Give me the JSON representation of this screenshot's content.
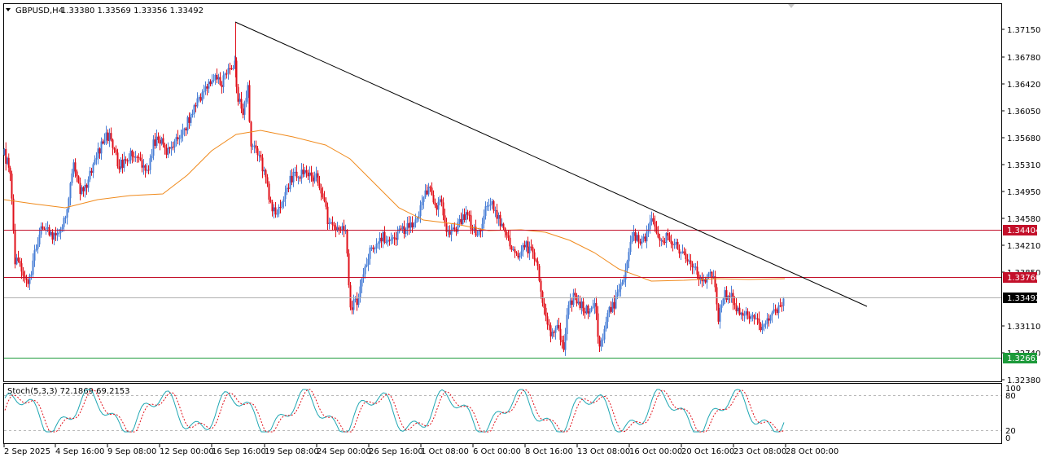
{
  "header": {
    "symbol": "GBPUSD,H4",
    "ohlc": "1.33380 1.33569 1.33356 1.33492"
  },
  "stoch_header": "Stoch(5,3,3) 72.1869 69.2153",
  "colors": {
    "bull": "#4a7fd6",
    "bear": "#e0101a",
    "ma": "#f08a1c",
    "resistance": "#c3102a",
    "support": "#1c9a3a",
    "trendline": "#000000",
    "stoch_main": "#20a7b3",
    "stoch_signal": "#e0101a"
  },
  "price_axis": [
    "1.37150",
    "1.36780",
    "1.36420",
    "1.36050",
    "1.35680",
    "1.35310",
    "1.34950",
    "1.34580",
    "1.34210",
    "1.33850",
    "1.33110",
    "1.32740",
    "1.32380"
  ],
  "price_markers": [
    {
      "value": "1.34404",
      "kind": "resistance"
    },
    {
      "value": "1.33760",
      "kind": "resistance"
    },
    {
      "value": "1.33492",
      "kind": "current"
    },
    {
      "value": "1.32661",
      "kind": "support"
    }
  ],
  "stoch_axis": [
    "100",
    "80",
    "20",
    "0"
  ],
  "time_axis": [
    "2 Sep 2025",
    "4 Sep 16:00",
    "9 Sep 08:00",
    "12 Sep 00:00",
    "16 Sep 16:00",
    "19 Sep 08:00",
    "24 Sep 00:00",
    "26 Sep 16:00",
    "1 Oct 08:00",
    "6 Oct 00:00",
    "8 Oct 16:00",
    "13 Oct 08:00",
    "16 Oct 00:00",
    "20 Oct 16:00",
    "23 Oct 08:00",
    "28 Oct 00:00"
  ],
  "chart_data": {
    "type": "candlestick",
    "symbol": "GBPUSD",
    "timeframe": "H4",
    "ylim": [
      1.3238,
      1.3752
    ],
    "levels": {
      "resistance_1": 1.34404,
      "resistance_2": 1.3376,
      "current": 1.33492,
      "support": 1.32661
    },
    "trendline": {
      "from": 1.3722,
      "to": 1.3333
    },
    "stochastic": {
      "k": 72.1869,
      "d": 69.2153,
      "levels": [
        80,
        20
      ]
    }
  }
}
